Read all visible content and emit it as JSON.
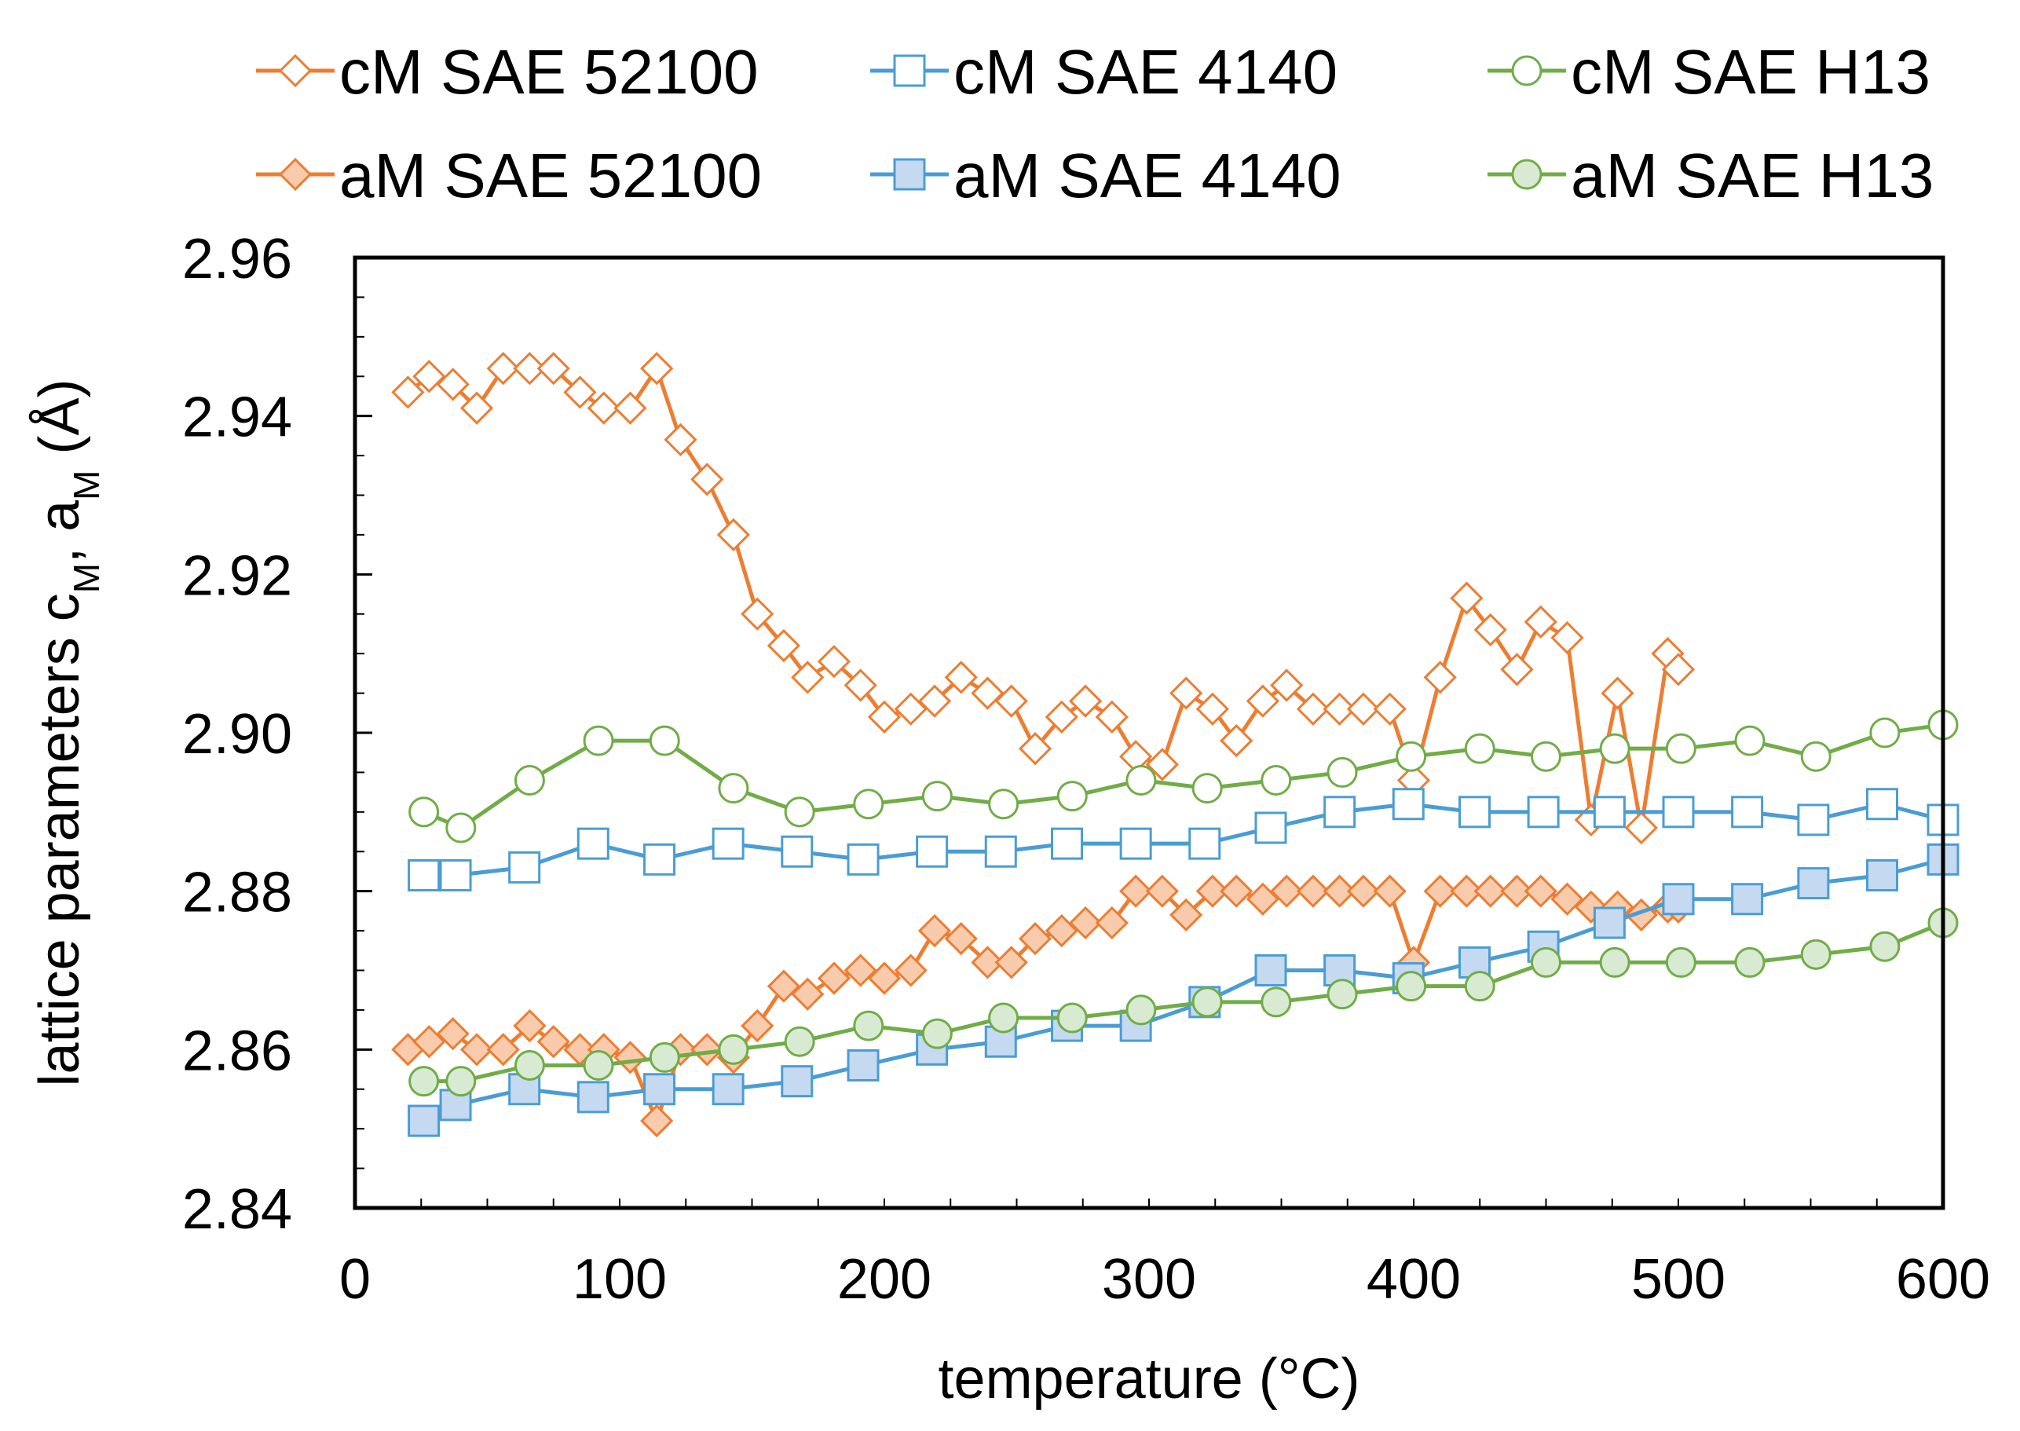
{
  "chart_data": {
    "type": "line",
    "title": "",
    "xlabel": "temperature (°C)",
    "ylabel_main": "lattice parameters c",
    "ylabel_sub1": "M",
    "ylabel_sep": ", a",
    "ylabel_sub2": "M",
    "ylabel_unit": " (Å)",
    "xlim": [
      0,
      600
    ],
    "ylim": [
      2.84,
      2.96
    ],
    "xticks": [
      0,
      100,
      200,
      300,
      400,
      500,
      600
    ],
    "yticks": [
      2.84,
      2.86,
      2.88,
      2.9,
      2.92,
      2.94,
      2.96
    ],
    "ytick_labels": [
      "2.84",
      "2.86",
      "2.88",
      "2.90",
      "2.92",
      "2.94",
      "2.96"
    ],
    "grid": false,
    "legend_position": "top",
    "series": [
      {
        "name": "cM SAE 52100",
        "color": "#ed7d31",
        "marker": "diamond",
        "filled": false,
        "fill": "#ffffff",
        "x": [
          20,
          28,
          37,
          46,
          56,
          66,
          75,
          85,
          94,
          104,
          114,
          123,
          133,
          143,
          152,
          162,
          171,
          181,
          191,
          200,
          210,
          219,
          229,
          239,
          248,
          257,
          267,
          276,
          286,
          295,
          305,
          314,
          324,
          333,
          343,
          352,
          362,
          372,
          381,
          391,
          400,
          410,
          420,
          429,
          439,
          448,
          458,
          467,
          477,
          486,
          496,
          500
        ],
        "values": [
          2.943,
          2.945,
          2.944,
          2.941,
          2.946,
          2.946,
          2.946,
          2.943,
          2.941,
          2.941,
          2.946,
          2.937,
          2.932,
          2.925,
          2.915,
          2.911,
          2.907,
          2.909,
          2.906,
          2.902,
          2.903,
          2.904,
          2.907,
          2.905,
          2.904,
          2.898,
          2.902,
          2.904,
          2.902,
          2.897,
          2.896,
          2.905,
          2.903,
          2.899,
          2.904,
          2.906,
          2.903,
          2.903,
          2.903,
          2.903,
          2.894,
          2.907,
          2.917,
          2.913,
          2.908,
          2.914,
          2.912,
          2.889,
          2.905,
          2.888,
          2.91,
          2.908
        ]
      },
      {
        "name": "cM SAE 4140",
        "color": "#4a9dd4",
        "marker": "square",
        "filled": false,
        "fill": "#ffffff",
        "x": [
          26,
          38,
          64,
          90,
          115,
          141,
          167,
          192,
          218,
          244,
          269,
          295,
          321,
          346,
          372,
          398,
          423,
          449,
          474,
          500,
          526,
          551,
          577,
          600
        ],
        "values": [
          2.882,
          2.882,
          2.883,
          2.886,
          2.884,
          2.886,
          2.885,
          2.884,
          2.885,
          2.885,
          2.886,
          2.886,
          2.886,
          2.888,
          2.89,
          2.891,
          2.89,
          2.89,
          2.89,
          2.89,
          2.89,
          2.889,
          2.891,
          2.889
        ]
      },
      {
        "name": "cM SAE H13",
        "color": "#70ad47",
        "marker": "circle",
        "filled": false,
        "fill": "#ffffff",
        "x": [
          26,
          40,
          66,
          92,
          117,
          143,
          168,
          194,
          220,
          245,
          271,
          297,
          322,
          348,
          373,
          399,
          425,
          450,
          476,
          501,
          527,
          552,
          578,
          600
        ],
        "values": [
          2.89,
          2.888,
          2.894,
          2.899,
          2.899,
          2.893,
          2.89,
          2.891,
          2.892,
          2.891,
          2.892,
          2.894,
          2.893,
          2.894,
          2.895,
          2.897,
          2.898,
          2.897,
          2.898,
          2.898,
          2.899,
          2.897,
          2.9,
          2.901
        ]
      },
      {
        "name": "aM SAE 52100",
        "color": "#ed7d31",
        "marker": "diamond",
        "filled": true,
        "fill": "#f8cbad",
        "x": [
          20,
          28,
          37,
          46,
          56,
          66,
          75,
          85,
          94,
          104,
          114,
          123,
          133,
          143,
          152,
          162,
          171,
          181,
          191,
          200,
          210,
          219,
          229,
          239,
          248,
          257,
          267,
          276,
          286,
          295,
          305,
          314,
          324,
          333,
          343,
          352,
          362,
          372,
          381,
          391,
          400,
          410,
          420,
          429,
          439,
          448,
          458,
          467,
          477,
          486,
          496,
          500
        ],
        "values": [
          2.86,
          2.861,
          2.862,
          2.86,
          2.86,
          2.863,
          2.861,
          2.86,
          2.86,
          2.859,
          2.851,
          2.86,
          2.86,
          2.859,
          2.863,
          2.868,
          2.867,
          2.869,
          2.87,
          2.869,
          2.87,
          2.875,
          2.874,
          2.871,
          2.871,
          2.874,
          2.875,
          2.876,
          2.876,
          2.88,
          2.88,
          2.877,
          2.88,
          2.88,
          2.879,
          2.88,
          2.88,
          2.88,
          2.88,
          2.88,
          2.871,
          2.88,
          2.88,
          2.88,
          2.88,
          2.88,
          2.879,
          2.878,
          2.878,
          2.877,
          2.878,
          2.878
        ]
      },
      {
        "name": "aM SAE 4140",
        "color": "#4a9dd4",
        "marker": "square",
        "filled": true,
        "fill": "#c5d9f1",
        "x": [
          26,
          38,
          64,
          90,
          115,
          141,
          167,
          192,
          218,
          244,
          269,
          295,
          321,
          346,
          372,
          398,
          423,
          449,
          474,
          500,
          526,
          551,
          577,
          600
        ],
        "values": [
          2.851,
          2.853,
          2.855,
          2.854,
          2.855,
          2.855,
          2.856,
          2.858,
          2.86,
          2.861,
          2.863,
          2.863,
          2.866,
          2.87,
          2.87,
          2.869,
          2.871,
          2.873,
          2.876,
          2.879,
          2.879,
          2.881,
          2.882,
          2.884
        ]
      },
      {
        "name": "aM SAE H13",
        "color": "#70ad47",
        "marker": "circle",
        "filled": true,
        "fill": "#d9ead3",
        "x": [
          26,
          40,
          66,
          92,
          117,
          143,
          168,
          194,
          220,
          245,
          271,
          297,
          322,
          348,
          373,
          399,
          425,
          450,
          476,
          501,
          527,
          552,
          578,
          600
        ],
        "values": [
          2.856,
          2.856,
          2.858,
          2.858,
          2.859,
          2.86,
          2.861,
          2.863,
          2.862,
          2.864,
          2.864,
          2.865,
          2.866,
          2.866,
          2.867,
          2.868,
          2.868,
          2.871,
          2.871,
          2.871,
          2.871,
          2.872,
          2.873,
          2.876
        ]
      }
    ]
  }
}
